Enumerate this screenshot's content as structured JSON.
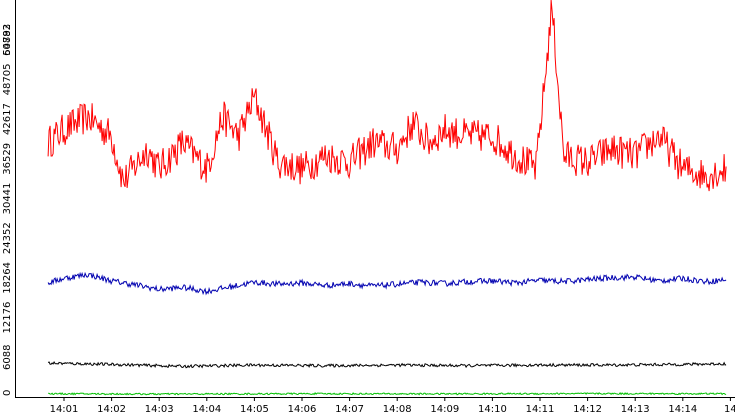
{
  "chart_data": {
    "type": "line",
    "title": "",
    "xlabel": "",
    "ylabel": "",
    "ylim": [
      0,
      60882
    ],
    "y_ticks": [
      0,
      6088,
      12176,
      18264,
      24352,
      30441,
      36529,
      42617,
      48705,
      54793,
      60882
    ],
    "x_ticks": [
      "14:01",
      "14:02",
      "14:03",
      "14:04",
      "14:05",
      "14:06",
      "14:07",
      "14:08",
      "14:09",
      "14:10",
      "14:11",
      "14:12",
      "14:13",
      "14:14",
      "14"
    ],
    "grid": false,
    "legend": "none",
    "series": [
      {
        "color": "#ff0000",
        "x": [
          "14:00:40",
          "14:01:00",
          "14:01:30",
          "14:02:00",
          "14:02:15",
          "14:02:45",
          "14:03:00",
          "14:03:30",
          "14:04:00",
          "14:04:20",
          "14:04:40",
          "14:05:00",
          "14:05:30",
          "14:06:00",
          "14:06:30",
          "14:07:00",
          "14:07:30",
          "14:08:00",
          "14:08:20",
          "14:08:40",
          "14:09:00",
          "14:09:30",
          "14:10:00",
          "14:10:30",
          "14:10:55",
          "14:11:05",
          "14:11:15",
          "14:11:30",
          "14:12:00",
          "14:12:30",
          "14:13:00",
          "14:13:30",
          "14:14:00",
          "14:14:30",
          "14:14:55"
        ],
        "values": [
          39000,
          41000,
          43000,
          40000,
          33000,
          38000,
          35000,
          39000,
          35000,
          43000,
          40000,
          46000,
          36000,
          35000,
          37000,
          36000,
          39000,
          38000,
          42000,
          39000,
          41000,
          40000,
          40000,
          37000,
          35000,
          47000,
          60000,
          37000,
          36000,
          38000,
          37000,
          40000,
          35000,
          34000,
          35000
        ]
      },
      {
        "color": "#0000b0",
        "x": [
          "14:00:40",
          "14:01:00",
          "14:01:30",
          "14:02:00",
          "14:02:30",
          "14:03:00",
          "14:03:30",
          "14:04:00",
          "14:04:30",
          "14:05:00",
          "14:05:30",
          "14:06:00",
          "14:06:30",
          "14:07:00",
          "14:07:30",
          "14:08:00",
          "14:08:30",
          "14:09:00",
          "14:09:30",
          "14:10:00",
          "14:10:30",
          "14:11:00",
          "14:11:30",
          "14:12:00",
          "14:12:30",
          "14:13:00",
          "14:13:30",
          "14:14:00",
          "14:14:30",
          "14:14:55"
        ],
        "values": [
          17500,
          18200,
          18800,
          17800,
          17200,
          16500,
          16800,
          16200,
          16900,
          17600,
          17300,
          17500,
          17100,
          17400,
          17000,
          17300,
          17600,
          17400,
          17700,
          17800,
          17500,
          17900,
          17700,
          18000,
          18300,
          18400,
          17800,
          18200,
          17700,
          18000
        ]
      },
      {
        "color": "#000000",
        "x": [
          "14:00:40",
          "14:02:00",
          "14:03:30",
          "14:05:00",
          "14:06:30",
          "14:08:00",
          "14:09:30",
          "14:11:00",
          "14:12:30",
          "14:14:00",
          "14:14:55"
        ],
        "values": [
          5200,
          5000,
          4700,
          4900,
          4800,
          4900,
          4800,
          4900,
          4900,
          5000,
          5100
        ]
      },
      {
        "color": "#00c000",
        "x": [
          "14:00:40",
          "14:03:00",
          "14:06:00",
          "14:09:00",
          "14:12:00",
          "14:14:55"
        ],
        "values": [
          500,
          450,
          500,
          480,
          520,
          500
        ]
      }
    ]
  }
}
